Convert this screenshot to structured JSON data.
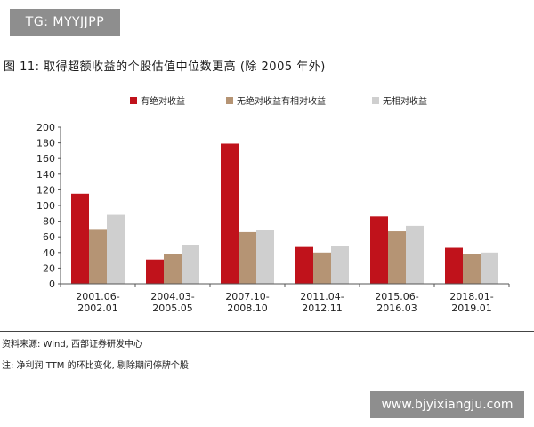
{
  "badge": "TG: MYYJJPP",
  "figure_title": "图 11:  取得超额收益的个股估值中位数更高 (除 2005 年外)",
  "source_text": "资料来源: Wind, 西部证券研发中心",
  "note_text": "注: 净利润 TTM 的环比变化, 剔除期间停牌个股",
  "watermark": "www.bjyixiangju.com",
  "chart_data": {
    "type": "bar",
    "title": "",
    "xlabel": "",
    "ylabel": "",
    "ylim": [
      0,
      200
    ],
    "yticks": [
      0,
      20,
      40,
      60,
      80,
      100,
      120,
      140,
      160,
      180,
      200
    ],
    "categories": [
      [
        "2001.06-",
        "2002.01"
      ],
      [
        "2004.03-",
        "2005.05"
      ],
      [
        "2007.10-",
        "2008.10"
      ],
      [
        "2011.04-",
        "2012.11"
      ],
      [
        "2015.06-",
        "2016.03"
      ],
      [
        "2018.01-",
        "2019.01"
      ]
    ],
    "legend_position": "top",
    "series": [
      {
        "name": "有绝对收益",
        "color": "#c0121b",
        "values": [
          115,
          31,
          179,
          47,
          86,
          46
        ]
      },
      {
        "name": "无绝对收益有相对收益",
        "color": "#b59474",
        "values": [
          70,
          38,
          66,
          40,
          67,
          38
        ]
      },
      {
        "name": "无相对收益",
        "color": "#cfcfcf",
        "values": [
          88,
          50,
          69,
          48,
          74,
          40
        ]
      }
    ]
  }
}
